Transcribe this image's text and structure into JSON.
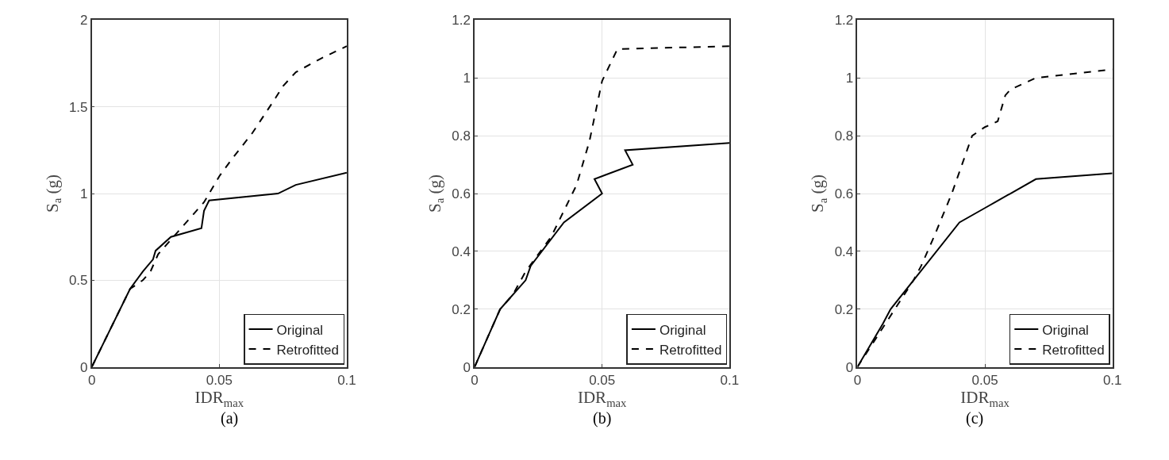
{
  "chart_data": [
    {
      "type": "line",
      "xlabel": "IDR$_{max}$",
      "ylabel": "S$_{a}$ (g)",
      "annotations": [
        "(a)"
      ],
      "xlim": [
        0,
        0.1
      ],
      "xticks": [
        0,
        0.05,
        0.1
      ],
      "ylim": [
        0,
        2
      ],
      "yticks": [
        0,
        0.5,
        1,
        1.5,
        2
      ],
      "grid": true,
      "legend": "bottom right",
      "series": [
        {
          "name": "Original",
          "color": "#000000",
          "line_style": "solid",
          "x": [
            0,
            0.005,
            0.015,
            0.02,
            0.024,
            0.025,
            0.031,
            0.043,
            0.044,
            0.046,
            0.073,
            0.08,
            0.1
          ],
          "values": [
            0,
            0.15,
            0.45,
            0.55,
            0.62,
            0.67,
            0.75,
            0.8,
            0.9,
            0.96,
            1.0,
            1.05,
            1.12
          ]
        },
        {
          "name": "Retrofitted",
          "color": "#000000",
          "line_style": "dashed",
          "x": [
            0,
            0.015,
            0.02,
            0.023,
            0.026,
            0.035,
            0.044,
            0.05,
            0.055,
            0.063,
            0.072,
            0.075,
            0.08,
            0.09,
            0.1
          ],
          "values": [
            0,
            0.45,
            0.5,
            0.55,
            0.65,
            0.8,
            0.95,
            1.1,
            1.2,
            1.35,
            1.55,
            1.62,
            1.7,
            1.78,
            1.85
          ]
        }
      ]
    },
    {
      "type": "line",
      "xlabel": "IDR$_{max}$",
      "ylabel": "S$_{a}$ (g)",
      "annotations": [
        "(b)"
      ],
      "xlim": [
        0,
        0.1
      ],
      "xticks": [
        0,
        0.05,
        0.1
      ],
      "ylim": [
        0,
        1.2
      ],
      "yticks": [
        0,
        0.2,
        0.4,
        0.6,
        0.8,
        1,
        1.2
      ],
      "grid": true,
      "legend": "bottom right",
      "series": [
        {
          "name": "Original",
          "color": "#000000",
          "line_style": "solid",
          "x": [
            0,
            0.005,
            0.01,
            0.012,
            0.02,
            0.022,
            0.035,
            0.05,
            0.047,
            0.062,
            0.059,
            0.1
          ],
          "values": [
            0,
            0.1,
            0.2,
            0.22,
            0.3,
            0.35,
            0.5,
            0.6,
            0.65,
            0.7,
            0.75,
            0.775
          ]
        },
        {
          "name": "Retrofitted",
          "color": "#000000",
          "line_style": "dashed",
          "x": [
            0,
            0.01,
            0.015,
            0.02,
            0.03,
            0.04,
            0.045,
            0.05,
            0.056,
            0.1
          ],
          "values": [
            0,
            0.2,
            0.25,
            0.33,
            0.45,
            0.63,
            0.78,
            0.99,
            1.1,
            1.11
          ]
        }
      ]
    },
    {
      "type": "line",
      "xlabel": "IDR$_{max}$",
      "ylabel": "S$_{a}$ (g)",
      "annotations": [
        "(c)"
      ],
      "xlim": [
        0,
        0.1
      ],
      "xticks": [
        0,
        0.05,
        0.1
      ],
      "ylim": [
        0,
        1.2
      ],
      "yticks": [
        0,
        0.2,
        0.4,
        0.6,
        0.8,
        1,
        1.2
      ],
      "grid": true,
      "legend": "bottom right",
      "series": [
        {
          "name": "Original",
          "color": "#000000",
          "line_style": "solid",
          "x": [
            0,
            0.01,
            0.013,
            0.022,
            0.04,
            0.05,
            0.06,
            0.07,
            0.1
          ],
          "values": [
            0,
            0.15,
            0.2,
            0.3,
            0.5,
            0.55,
            0.6,
            0.65,
            0.67
          ]
        },
        {
          "name": "Retrofitted",
          "color": "#000000",
          "line_style": "dashed",
          "x": [
            0,
            0.022,
            0.025,
            0.03,
            0.037,
            0.045,
            0.05,
            0.055,
            0.058,
            0.06,
            0.07,
            0.1
          ],
          "values": [
            0,
            0.3,
            0.35,
            0.45,
            0.6,
            0.8,
            0.83,
            0.85,
            0.94,
            0.96,
            1.0,
            1.03
          ]
        }
      ]
    }
  ]
}
